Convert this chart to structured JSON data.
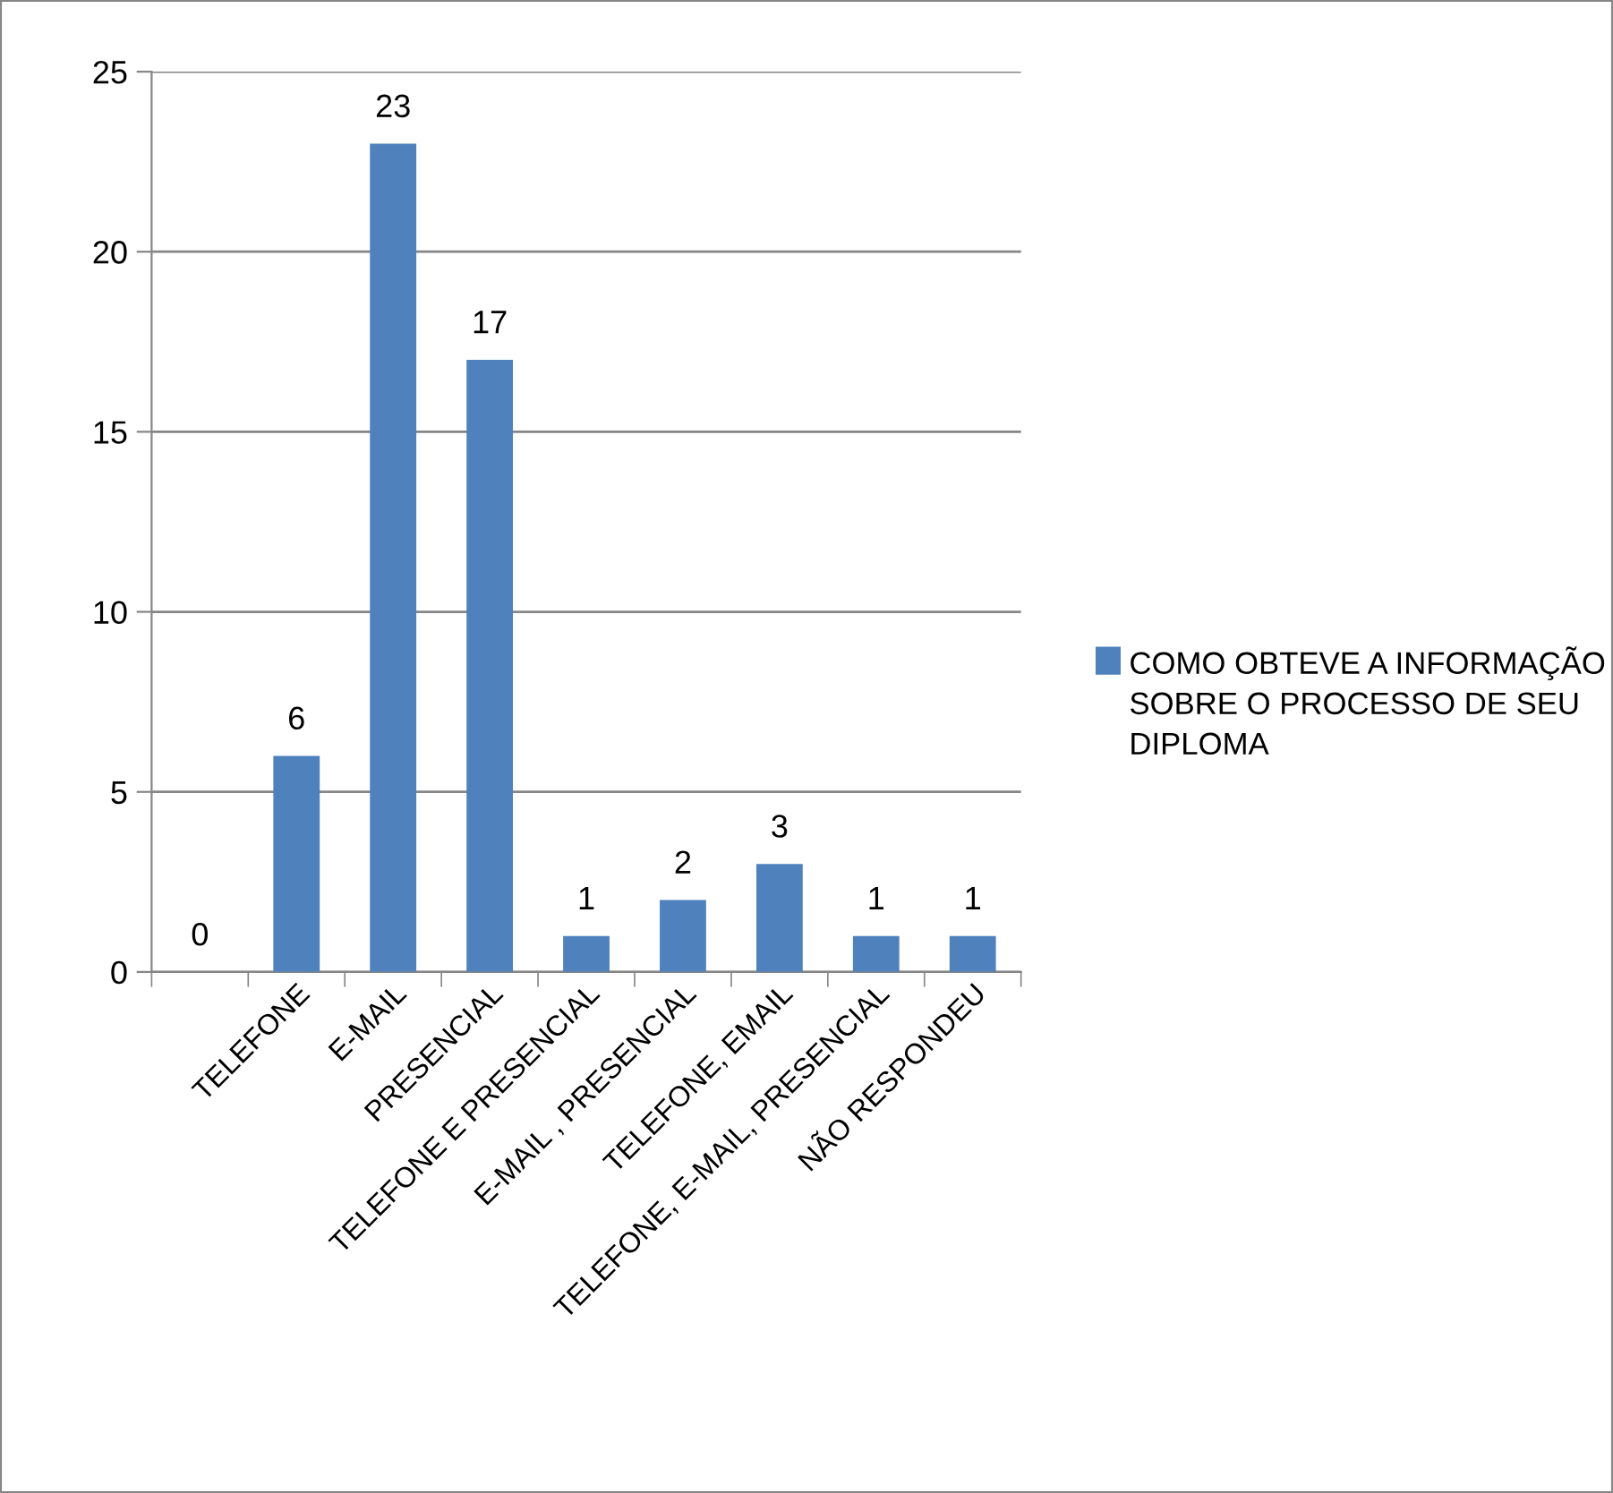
{
  "chart_data": {
    "type": "bar",
    "categories": [
      null,
      "TELEFONE",
      "E-MAIL",
      "PRESENCIAL",
      "TELEFONE E PRESENCIAL",
      "E-MAIL , PRESENCIAL",
      "TELEFONE, EMAIL",
      "TELEFONE, E-MAIL, PRESENCIAL",
      "NÃO RESPONDEU"
    ],
    "series": [
      {
        "name": "COMO OBTEVE A INFORMAÇÃO SOBRE O PROCESSO DE SEU DIPLOMA",
        "color": "#4f81bd",
        "values": [
          0,
          6,
          23,
          17,
          1,
          2,
          3,
          1,
          1
        ]
      }
    ],
    "ylim": [
      0,
      25
    ],
    "yticks": [
      0,
      5,
      10,
      15,
      20,
      25
    ],
    "grid": "y",
    "data_labels": true,
    "legend": "right"
  }
}
